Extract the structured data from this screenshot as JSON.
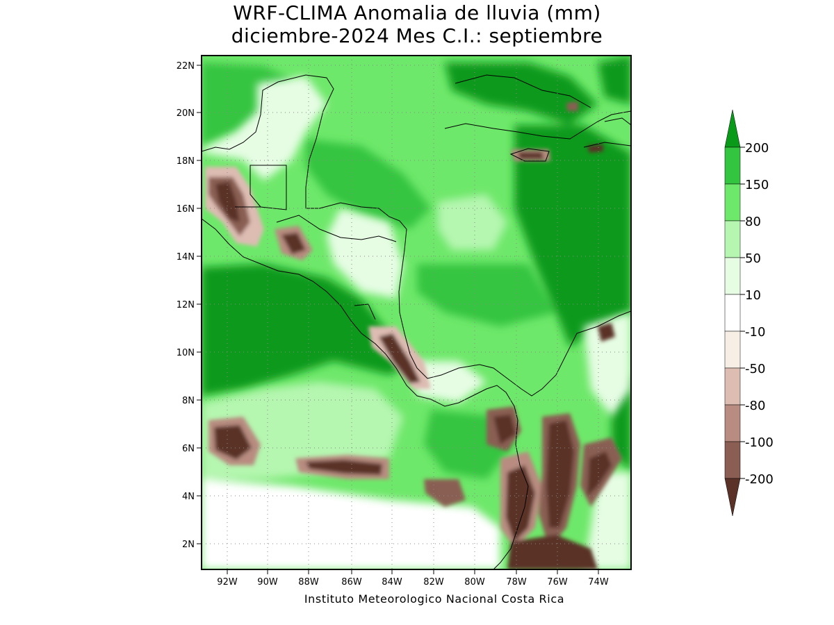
{
  "title_line1": "WRF-CLIMA Anomalia de lluvia (mm)",
  "title_line2": "diciembre-2024 Mes C.I.: septiembre",
  "credit": "Instituto Meteorologico Nacional Costa Rica",
  "lon_ticks": [
    "92W",
    "90W",
    "88W",
    "86W",
    "84W",
    "82W",
    "80W",
    "78W",
    "76W",
    "74W"
  ],
  "lat_ticks": [
    "22N",
    "20N",
    "18N",
    "16N",
    "14N",
    "12N",
    "10N",
    "8N",
    "6N",
    "4N",
    "2N"
  ],
  "colorbar": {
    "labels": [
      "200",
      "150",
      "80",
      "50",
      "10",
      "-10",
      "-50",
      "-80",
      "-100",
      "-200"
    ],
    "colors": {
      "g200": "#0a9a1a",
      "g150": "#34c540",
      "g80": "#6ee86a",
      "g50": "#b5f6b0",
      "g10": "#e6fde4",
      "zero": "#ffffff",
      "b10": "#f7efe6",
      "b50": "#ddbcb2",
      "b80": "#b88c80",
      "b100": "#8a5e53",
      "b200": "#5a3228"
    }
  }
}
